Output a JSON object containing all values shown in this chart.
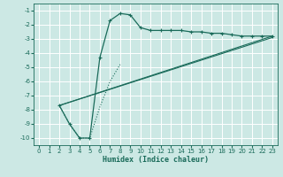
{
  "xlabel": "Humidex (Indice chaleur)",
  "bg_color": "#cce8e4",
  "grid_color": "#ffffff",
  "line_color": "#1a6b5a",
  "xlim": [
    -0.5,
    23.5
  ],
  "ylim": [
    -10.5,
    -0.5
  ],
  "xticks": [
    0,
    1,
    2,
    3,
    4,
    5,
    6,
    7,
    8,
    9,
    10,
    11,
    12,
    13,
    14,
    15,
    16,
    17,
    18,
    19,
    20,
    21,
    22,
    23
  ],
  "yticks": [
    -1,
    -2,
    -3,
    -4,
    -5,
    -6,
    -7,
    -8,
    -9,
    -10
  ],
  "series1_x": [
    2,
    3,
    4,
    5,
    6,
    7,
    8,
    9,
    10,
    11,
    12,
    13,
    14,
    15,
    16,
    17,
    18,
    19,
    20,
    21,
    22,
    23
  ],
  "series1_y": [
    -7.7,
    -9.0,
    -10.0,
    -10.0,
    -4.3,
    -1.7,
    -1.2,
    -1.3,
    -2.2,
    -2.4,
    -2.4,
    -2.4,
    -2.4,
    -2.5,
    -2.5,
    -2.6,
    -2.6,
    -2.7,
    -2.8,
    -2.8,
    -2.8,
    -2.8
  ],
  "series2_x": [
    2,
    23
  ],
  "series2_y": [
    -7.7,
    -2.8
  ],
  "series3_x": [
    2,
    23
  ],
  "series3_y": [
    -7.7,
    -2.9
  ],
  "dotted_x": [
    2,
    3,
    4,
    5,
    6,
    7,
    8
  ],
  "dotted_y": [
    -7.7,
    -9.0,
    -10.0,
    -10.0,
    -7.8,
    -6.0,
    -4.8
  ]
}
